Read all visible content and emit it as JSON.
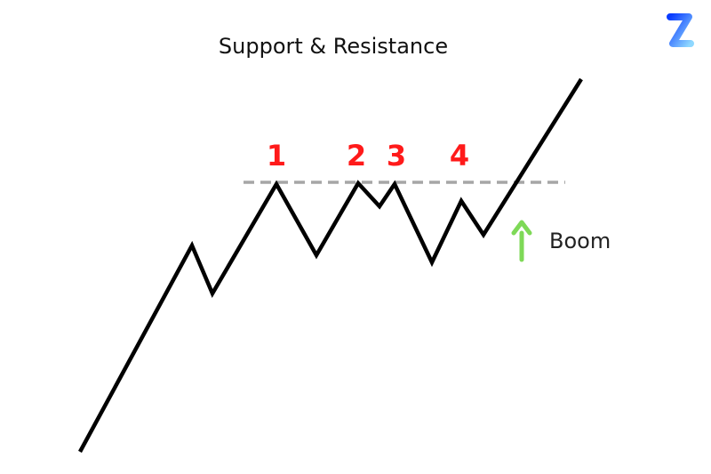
{
  "title": "Support & Resistance",
  "touch_labels": [
    "1",
    "2",
    "3",
    "4"
  ],
  "breakout_label": "Boom",
  "logo": {
    "letter": "Z"
  },
  "colors": {
    "price_line": "#000000",
    "resistance_line": "#a6a6a6",
    "touch_labels": "#ff1a1a",
    "arrow": "#7ed957",
    "logo_start": "#0a3cff",
    "logo_end": "#8fd8ff"
  },
  "icons": {
    "arrow": "arrow-up-icon",
    "logo": "z-logo-icon"
  }
}
